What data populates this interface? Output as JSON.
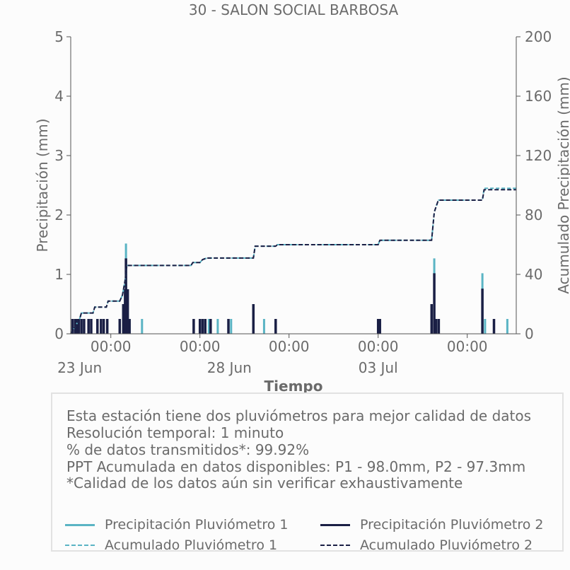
{
  "chart_data": {
    "type": "bar",
    "title": "30 - SALON SOCIAL BARBOSA",
    "xlabel": "Tiempo",
    "ylabel": "Precipitación (mm)",
    "y2label": "Acumulado Precipitación (mm)",
    "ylim": [
      0,
      5
    ],
    "y2lim": [
      0,
      200
    ],
    "yticks": [
      "0",
      "1",
      "2",
      "3",
      "4",
      "5"
    ],
    "y2ticks": [
      "0",
      "40",
      "80",
      "120",
      "160",
      "200"
    ],
    "xlim_days": [
      21.55,
      26.55
    ],
    "xticks": [
      {
        "day": 22.0,
        "label": "00:00"
      },
      {
        "day": 23.0,
        "label": "00:00"
      },
      {
        "day": 24.0,
        "label": "00:00"
      },
      {
        "day": 25.0,
        "label": "00:00"
      },
      {
        "day": 26.0,
        "label": "00:00"
      }
    ],
    "xdate_labels": [
      {
        "day": 21.65,
        "label": "23 Jun"
      },
      {
        "day": 23.33,
        "label": "28 Jun"
      },
      {
        "day": 25.0,
        "label": "03 Jul"
      }
    ],
    "series": [
      {
        "name": "Precipitación Pluviómetro 1",
        "color": "#5ab4c4",
        "style": "bar",
        "points": [
          [
            21.57,
            0.25
          ],
          [
            21.6,
            0.25
          ],
          [
            21.62,
            0.25
          ],
          [
            21.64,
            0.25
          ],
          [
            21.67,
            0.25
          ],
          [
            21.7,
            0.25
          ],
          [
            21.75,
            0.25
          ],
          [
            21.78,
            0.25
          ],
          [
            21.85,
            0.25
          ],
          [
            21.89,
            0.25
          ],
          [
            21.92,
            0.25
          ],
          [
            21.96,
            0.25
          ],
          [
            22.1,
            0.25
          ],
          [
            22.14,
            0.5
          ],
          [
            22.16,
            0.75
          ],
          [
            22.17,
            1.52
          ],
          [
            22.19,
            0.75
          ],
          [
            22.21,
            0.25
          ],
          [
            22.35,
            0.25
          ],
          [
            23.0,
            0.25
          ],
          [
            23.1,
            0.25
          ],
          [
            23.12,
            0.25
          ],
          [
            23.2,
            0.25
          ],
          [
            23.35,
            0.25
          ],
          [
            23.6,
            0.5
          ],
          [
            23.72,
            0.25
          ],
          [
            23.85,
            0.25
          ],
          [
            25.0,
            0.25
          ],
          [
            25.02,
            0.25
          ],
          [
            25.6,
            0.5
          ],
          [
            25.63,
            1.27
          ],
          [
            25.65,
            0.25
          ],
          [
            25.68,
            0.25
          ],
          [
            26.17,
            1.02
          ],
          [
            26.2,
            0.25
          ],
          [
            26.3,
            0.25
          ],
          [
            26.45,
            0.25
          ]
        ]
      },
      {
        "name": "Precipitación Pluviómetro 2",
        "color": "#1a1f45",
        "style": "bar",
        "points": [
          [
            21.57,
            0.25
          ],
          [
            21.6,
            0.25
          ],
          [
            21.62,
            0.25
          ],
          [
            21.64,
            0.25
          ],
          [
            21.67,
            0.25
          ],
          [
            21.7,
            0.25
          ],
          [
            21.75,
            0.25
          ],
          [
            21.78,
            0.25
          ],
          [
            21.85,
            0.25
          ],
          [
            21.89,
            0.25
          ],
          [
            21.92,
            0.25
          ],
          [
            21.96,
            0.25
          ],
          [
            22.1,
            0.25
          ],
          [
            22.14,
            0.5
          ],
          [
            22.16,
            0.75
          ],
          [
            22.17,
            1.27
          ],
          [
            22.19,
            0.75
          ],
          [
            22.21,
            0.25
          ],
          [
            22.93,
            0.25
          ],
          [
            23.0,
            0.25
          ],
          [
            23.03,
            0.25
          ],
          [
            23.06,
            0.25
          ],
          [
            23.12,
            0.25
          ],
          [
            23.32,
            0.25
          ],
          [
            23.6,
            0.5
          ],
          [
            23.85,
            0.25
          ],
          [
            25.0,
            0.25
          ],
          [
            25.02,
            0.25
          ],
          [
            25.6,
            0.5
          ],
          [
            25.63,
            1.02
          ],
          [
            25.65,
            0.25
          ],
          [
            25.68,
            0.25
          ],
          [
            26.17,
            0.76
          ],
          [
            26.3,
            0.25
          ]
        ]
      },
      {
        "name": "Acumulado Pluviómetro 1",
        "color": "#5ab4c4",
        "style": "dashed-step",
        "points": [
          [
            21.55,
            0
          ],
          [
            21.65,
            10
          ],
          [
            21.67,
            14
          ],
          [
            21.8,
            14
          ],
          [
            21.82,
            18
          ],
          [
            21.95,
            18
          ],
          [
            21.97,
            22
          ],
          [
            22.1,
            22
          ],
          [
            22.13,
            26
          ],
          [
            22.16,
            36
          ],
          [
            22.18,
            46
          ],
          [
            22.9,
            46
          ],
          [
            22.92,
            48
          ],
          [
            23.0,
            48
          ],
          [
            23.03,
            50
          ],
          [
            23.08,
            51
          ],
          [
            23.6,
            51
          ],
          [
            23.62,
            59
          ],
          [
            23.85,
            59
          ],
          [
            23.87,
            60
          ],
          [
            25.0,
            60
          ],
          [
            25.02,
            63
          ],
          [
            25.6,
            63
          ],
          [
            25.63,
            82
          ],
          [
            25.67,
            89
          ],
          [
            25.68,
            90
          ],
          [
            26.17,
            90
          ],
          [
            26.19,
            98
          ],
          [
            26.55,
            98
          ]
        ]
      },
      {
        "name": "Acumulado Pluviómetro 2",
        "color": "#1a1f45",
        "style": "dashed-step",
        "points": [
          [
            21.55,
            0
          ],
          [
            21.65,
            10
          ],
          [
            21.67,
            14
          ],
          [
            21.8,
            14
          ],
          [
            21.82,
            18
          ],
          [
            21.95,
            18
          ],
          [
            21.97,
            22
          ],
          [
            22.1,
            22
          ],
          [
            22.13,
            26
          ],
          [
            22.16,
            36
          ],
          [
            22.18,
            46
          ],
          [
            22.9,
            46
          ],
          [
            22.92,
            48
          ],
          [
            23.0,
            48
          ],
          [
            23.03,
            50
          ],
          [
            23.08,
            51
          ],
          [
            23.6,
            51
          ],
          [
            23.62,
            59
          ],
          [
            23.85,
            59
          ],
          [
            23.87,
            60
          ],
          [
            25.0,
            60
          ],
          [
            25.02,
            63
          ],
          [
            25.6,
            63
          ],
          [
            25.63,
            82
          ],
          [
            25.67,
            89
          ],
          [
            25.68,
            90
          ],
          [
            26.17,
            90
          ],
          [
            26.19,
            97
          ],
          [
            26.55,
            97
          ]
        ]
      }
    ]
  },
  "info": {
    "line1": "Esta estación tiene dos pluviómetros para mejor calidad de datos",
    "line2": "Resolución temporal: 1 minuto",
    "line3": "% de datos transmitidos*: 99.92%",
    "line4": "PPT Acumulada en datos disponibles: P1 - 98.0mm, P2 - 97.3mm",
    "line5": "*Calidad de los datos aún sin verificar exhaustivamente"
  },
  "legend": {
    "p1": "Precipitación Pluviómetro 1",
    "p2": "Precipitación Pluviómetro 2",
    "a1": "Acumulado Pluviómetro 1",
    "a2": "Acumulado Pluviómetro 2"
  }
}
